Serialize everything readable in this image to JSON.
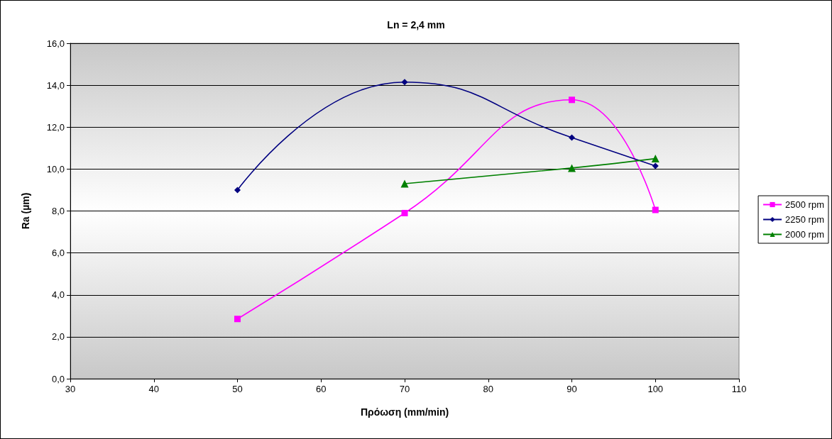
{
  "chart_data": {
    "type": "line",
    "title": "Ln = 2,4 mm",
    "xlabel": "Πρόωση (mm/min)",
    "ylabel": "Ra (µm)",
    "xlim": [
      30,
      110
    ],
    "xticks": [
      30,
      40,
      50,
      60,
      70,
      80,
      90,
      100,
      110
    ],
    "ylim": [
      0,
      16
    ],
    "yticks": [
      {
        "value": 0,
        "label": "0,0"
      },
      {
        "value": 2,
        "label": "2,0"
      },
      {
        "value": 4,
        "label": "4,0"
      },
      {
        "value": 6,
        "label": "6,0"
      },
      {
        "value": 8,
        "label": "8,0"
      },
      {
        "value": 10,
        "label": "10,0"
      },
      {
        "value": 12,
        "label": "12,0"
      },
      {
        "value": 14,
        "label": "14,0"
      },
      {
        "value": 16,
        "label": "16,0"
      }
    ],
    "grid": "y",
    "legend": "right",
    "line_style": "solid",
    "series": [
      {
        "name": "2500 rpm",
        "color": "#ff00ff",
        "marker": "square",
        "x": [
          50,
          70,
          90,
          100
        ],
        "values": [
          2.85,
          7.9,
          13.3,
          8.05
        ]
      },
      {
        "name": "2250 rpm",
        "color": "#000080",
        "marker": "diamond",
        "x": [
          50,
          70,
          90,
          100
        ],
        "values": [
          9.0,
          14.15,
          11.5,
          10.15
        ]
      },
      {
        "name": "2000 rpm",
        "color": "#008000",
        "marker": "triangle",
        "x": [
          70,
          90,
          100
        ],
        "values": [
          9.3,
          10.05,
          10.5
        ]
      }
    ]
  }
}
